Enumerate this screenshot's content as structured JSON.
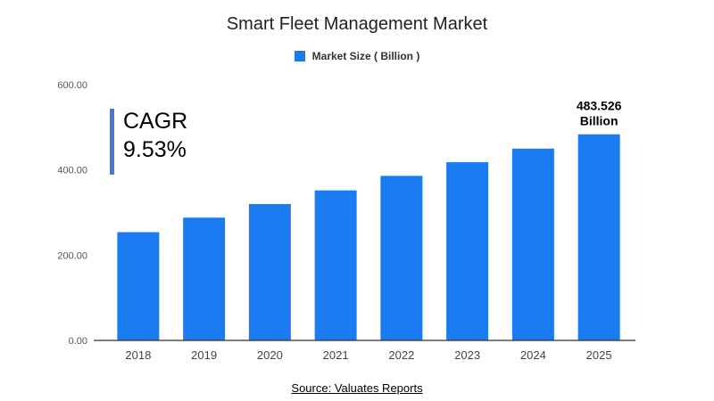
{
  "chart_data": {
    "type": "bar",
    "title": "Smart Fleet Management Market",
    "legend": {
      "label": "Market Size ( Billion )",
      "position": "top-center"
    },
    "categories": [
      "2018",
      "2019",
      "2020",
      "2021",
      "2022",
      "2023",
      "2024",
      "2025"
    ],
    "series": [
      {
        "name": "Market Size ( Billion )",
        "values": [
          254,
          288,
          320,
          352,
          386,
          418,
          450,
          483.526
        ]
      }
    ],
    "ylim": [
      0,
      600
    ],
    "yticks": [
      "0.00",
      "200.00",
      "400.00",
      "600.00"
    ],
    "grid": false,
    "data_labels": [
      {
        "category": "2025",
        "line1": "483.526",
        "line2": "Billion"
      }
    ],
    "colors": {
      "bar": "#1a7cf0",
      "axis": "#333333"
    }
  },
  "annotation": {
    "title": "CAGR",
    "value": "9.53%",
    "accent": "#4a78d6"
  },
  "source": "Source: Valuates Reports"
}
